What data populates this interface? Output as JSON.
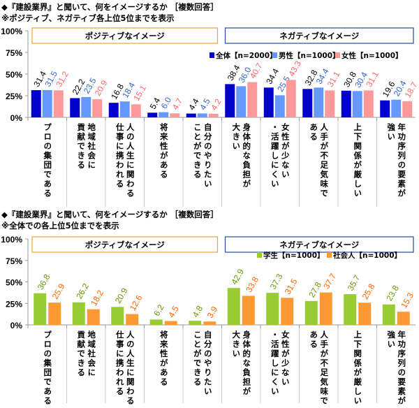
{
  "charts_titles": [
    {
      "line1": "◆『建設業界』と聞いて、何をイメージするか ［複数回答］",
      "line2": "※ポジティブ、ネガティブ各上位5位までを表示"
    },
    {
      "line1": "◆『建設業界』と聞いて、何をイメージするか ［複数回答］",
      "line2": "※全体での各上位5位までを表示"
    }
  ],
  "chart_data": [
    {
      "type": "bar",
      "ylim": [
        0,
        100
      ],
      "yticks": [
        "0%",
        "25%",
        "50%",
        "75%",
        "100%"
      ],
      "groups": [
        {
          "label": "ポジティブなイメージ",
          "color": "#e8a33c"
        },
        {
          "label": "ネガティブなイメージ",
          "color": "#1f4e9c"
        }
      ],
      "categories": [
        [
          "プロの集団である"
        ],
        [
          "地域社会に",
          "貢献できる"
        ],
        [
          "人の人生に関わる",
          "仕事に携われる"
        ],
        [
          "将来性がある"
        ],
        [
          "自分のやりたい",
          "ことができる"
        ],
        [
          "身体的な負担が",
          "大きい"
        ],
        [
          "女性が少ない",
          "・活躍しにくい"
        ],
        [
          "人手が不足気味で",
          "ある"
        ],
        [
          "上下関係が厳しい"
        ],
        [
          "年功序列の要素が",
          "強い"
        ]
      ],
      "series": [
        {
          "name": "全体【n=2000】",
          "color": "#0000cc",
          "label_color": "#000000",
          "values": [
            31.4,
            22.2,
            16.8,
            5.4,
            4.4,
            38.4,
            34.4,
            32.8,
            30.8,
            19.6
          ]
        },
        {
          "name": "男性【n=1000】",
          "color": "#6699ff",
          "label_color": "#3366cc",
          "values": [
            31.5,
            23.5,
            18.4,
            6.0,
            4.5,
            36.0,
            25.5,
            34.4,
            30.4,
            20.4
          ]
        },
        {
          "name": "女性【n=1000】",
          "color": "#ff9999",
          "label_color": "#ff6666",
          "values": [
            31.2,
            20.9,
            15.1,
            4.7,
            4.2,
            40.7,
            43.3,
            31.1,
            31.1,
            18.7
          ]
        }
      ]
    },
    {
      "type": "bar",
      "ylim": [
        0,
        100
      ],
      "yticks": [
        "0%",
        "25%",
        "50%",
        "75%",
        "100%"
      ],
      "groups": [
        {
          "label": "ポジティブなイメージ",
          "color": "#e8a33c"
        },
        {
          "label": "ネガティブなイメージ",
          "color": "#1f4e9c"
        }
      ],
      "categories": [
        [
          "プロの集団である"
        ],
        [
          "地域社会に",
          "貢献できる"
        ],
        [
          "人の人生に関わる",
          "仕事に携われる"
        ],
        [
          "将来性がある"
        ],
        [
          "自分のやりたい",
          "ことができる"
        ],
        [
          "身体的な負担が",
          "大きい"
        ],
        [
          "女性が少ない",
          "・活躍しにくい"
        ],
        [
          "人手が不足気味で",
          "ある"
        ],
        [
          "上下関係が厳しい"
        ],
        [
          "年功序列の要素が",
          "強い"
        ]
      ],
      "series": [
        {
          "name": "学生【n=1000】",
          "color": "#99cc33",
          "label_color": "#669900",
          "values": [
            36.8,
            26.2,
            20.9,
            6.2,
            4.8,
            42.9,
            37.3,
            27.8,
            35.7,
            23.8
          ]
        },
        {
          "name": "社会人【n=1000】",
          "color": "#ff9933",
          "label_color": "#ff6600",
          "values": [
            25.9,
            18.2,
            12.6,
            4.5,
            3.9,
            33.8,
            31.5,
            37.7,
            25.8,
            15.3
          ]
        }
      ]
    }
  ]
}
